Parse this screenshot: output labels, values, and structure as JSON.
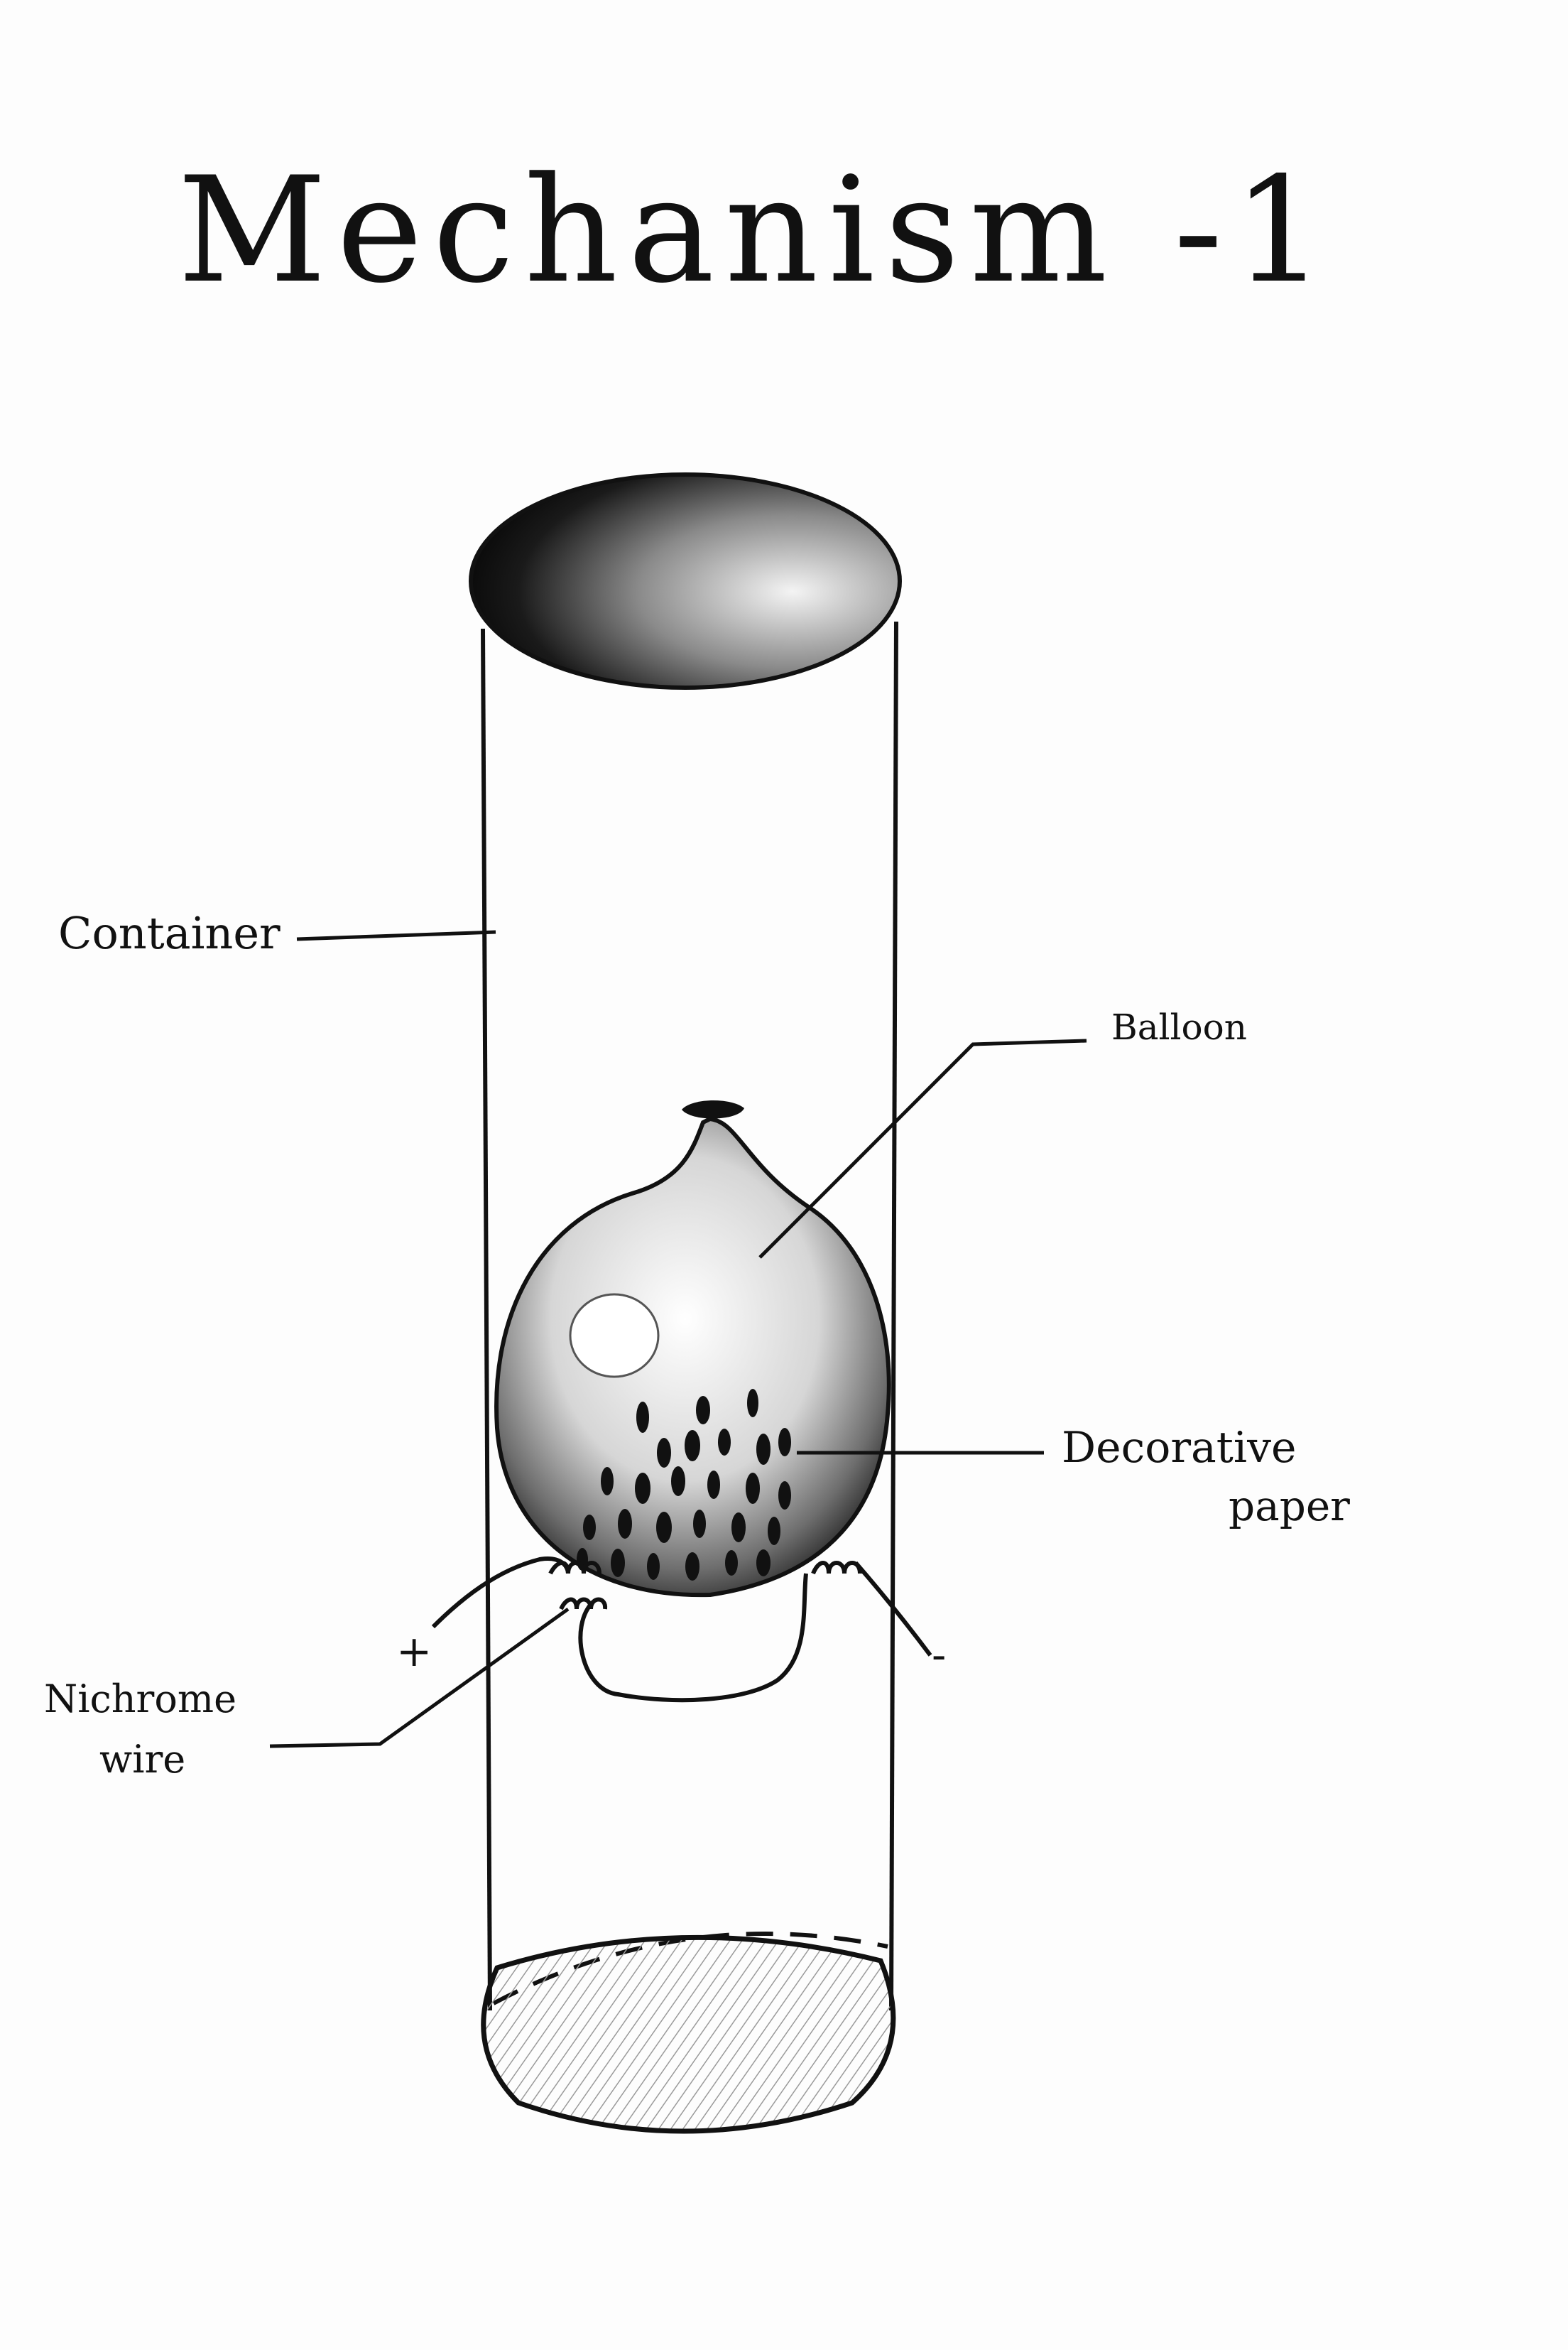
{
  "title": "Mechanism -1",
  "labels": {
    "container": "Container",
    "balloon": "Balloon",
    "decorative_paper_line1": "Decorative",
    "decorative_paper_line2": "paper",
    "nichrome_wire_line1": "Nichrome",
    "nichrome_wire_line2": "wire",
    "positive_terminal": "+",
    "negative_terminal": "-"
  },
  "colors": {
    "ink": "#111111",
    "paper": "#fdfdfd"
  }
}
